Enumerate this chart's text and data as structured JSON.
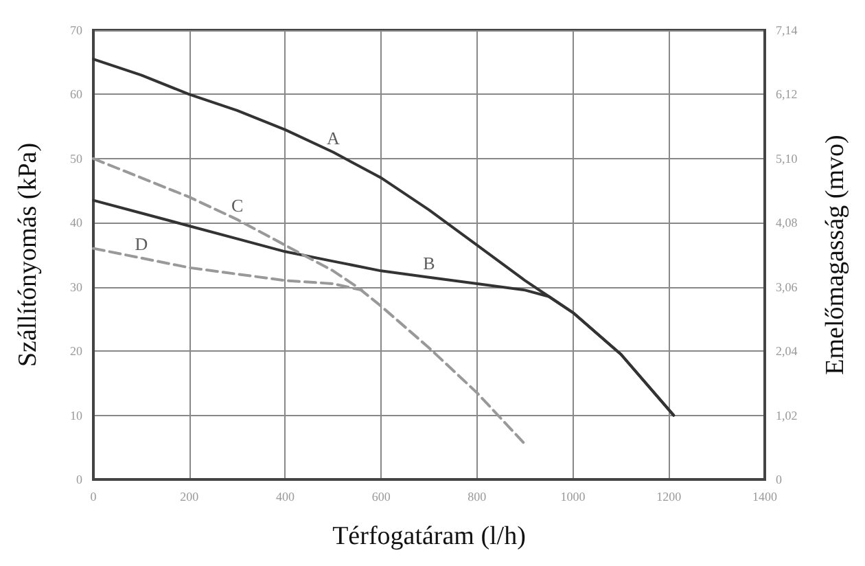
{
  "chart_data": {
    "type": "line",
    "xlabel": "Térfogatáram (l/h)",
    "ylabel": "Szállítónyomás (kPa)",
    "y2label": "Emelőmagasság (mvo)",
    "xlim": [
      0,
      1400
    ],
    "xticks": [
      0,
      200,
      400,
      600,
      800,
      1000,
      1200,
      1400
    ],
    "ylim": [
      0,
      70
    ],
    "yticks": [
      0,
      10,
      20,
      30,
      40,
      50,
      60,
      70
    ],
    "y2lim": [
      0,
      7.14
    ],
    "y2ticks": [
      0,
      {
        "value": 1.02,
        "label": "1,02"
      },
      {
        "value": 2.04,
        "label": "2,04"
      },
      {
        "value": 3.06,
        "label": "3,06"
      },
      {
        "value": 4.08,
        "label": "4,08"
      },
      {
        "value": 5.1,
        "label": "5,10"
      },
      {
        "value": 6.12,
        "label": "6,12"
      },
      {
        "value": 7.14,
        "label": "7,14"
      }
    ],
    "grid": true,
    "marker": "none",
    "series": [
      {
        "color": "#333333",
        "line_style": "solid",
        "x": [
          0,
          100,
          200,
          300,
          400,
          500,
          600,
          700,
          800,
          900,
          950,
          1000,
          1100,
          1210
        ],
        "values": [
          65.5,
          63,
          60,
          57.5,
          54.5,
          51,
          47,
          42,
          36.5,
          31,
          28.5,
          26,
          19.5,
          10
        ]
      },
      {
        "color": "#333333",
        "line_style": "solid",
        "x": [
          0,
          100,
          200,
          300,
          400,
          500,
          600,
          700,
          800,
          900,
          950,
          1000,
          1100,
          1210
        ],
        "values": [
          43.5,
          41.5,
          39.5,
          37.5,
          35.5,
          34,
          32.5,
          31.5,
          30.5,
          29.5,
          28.5,
          26,
          19.5,
          10
        ]
      },
      {
        "color": "#999999",
        "line_style": "dashed",
        "x": [
          0,
          100,
          200,
          300,
          400,
          500,
          550,
          600,
          700,
          800,
          900
        ],
        "values": [
          50,
          47,
          44,
          40.5,
          36.5,
          32.5,
          30,
          27,
          20.5,
          13.5,
          5.5
        ]
      },
      {
        "color": "#999999",
        "line_style": "dashed",
        "x": [
          0,
          100,
          200,
          300,
          400,
          500,
          560
        ],
        "values": [
          36,
          34.5,
          33,
          32,
          31,
          30.5,
          29.5
        ]
      }
    ],
    "annotations": [
      {
        "text": "A",
        "x": 500,
        "y": 51
      },
      {
        "text": "B",
        "x": 700,
        "y": 31.5
      },
      {
        "text": "C",
        "x": 300,
        "y": 40.5
      },
      {
        "text": "D",
        "x": 100,
        "y": 34.5
      }
    ]
  }
}
